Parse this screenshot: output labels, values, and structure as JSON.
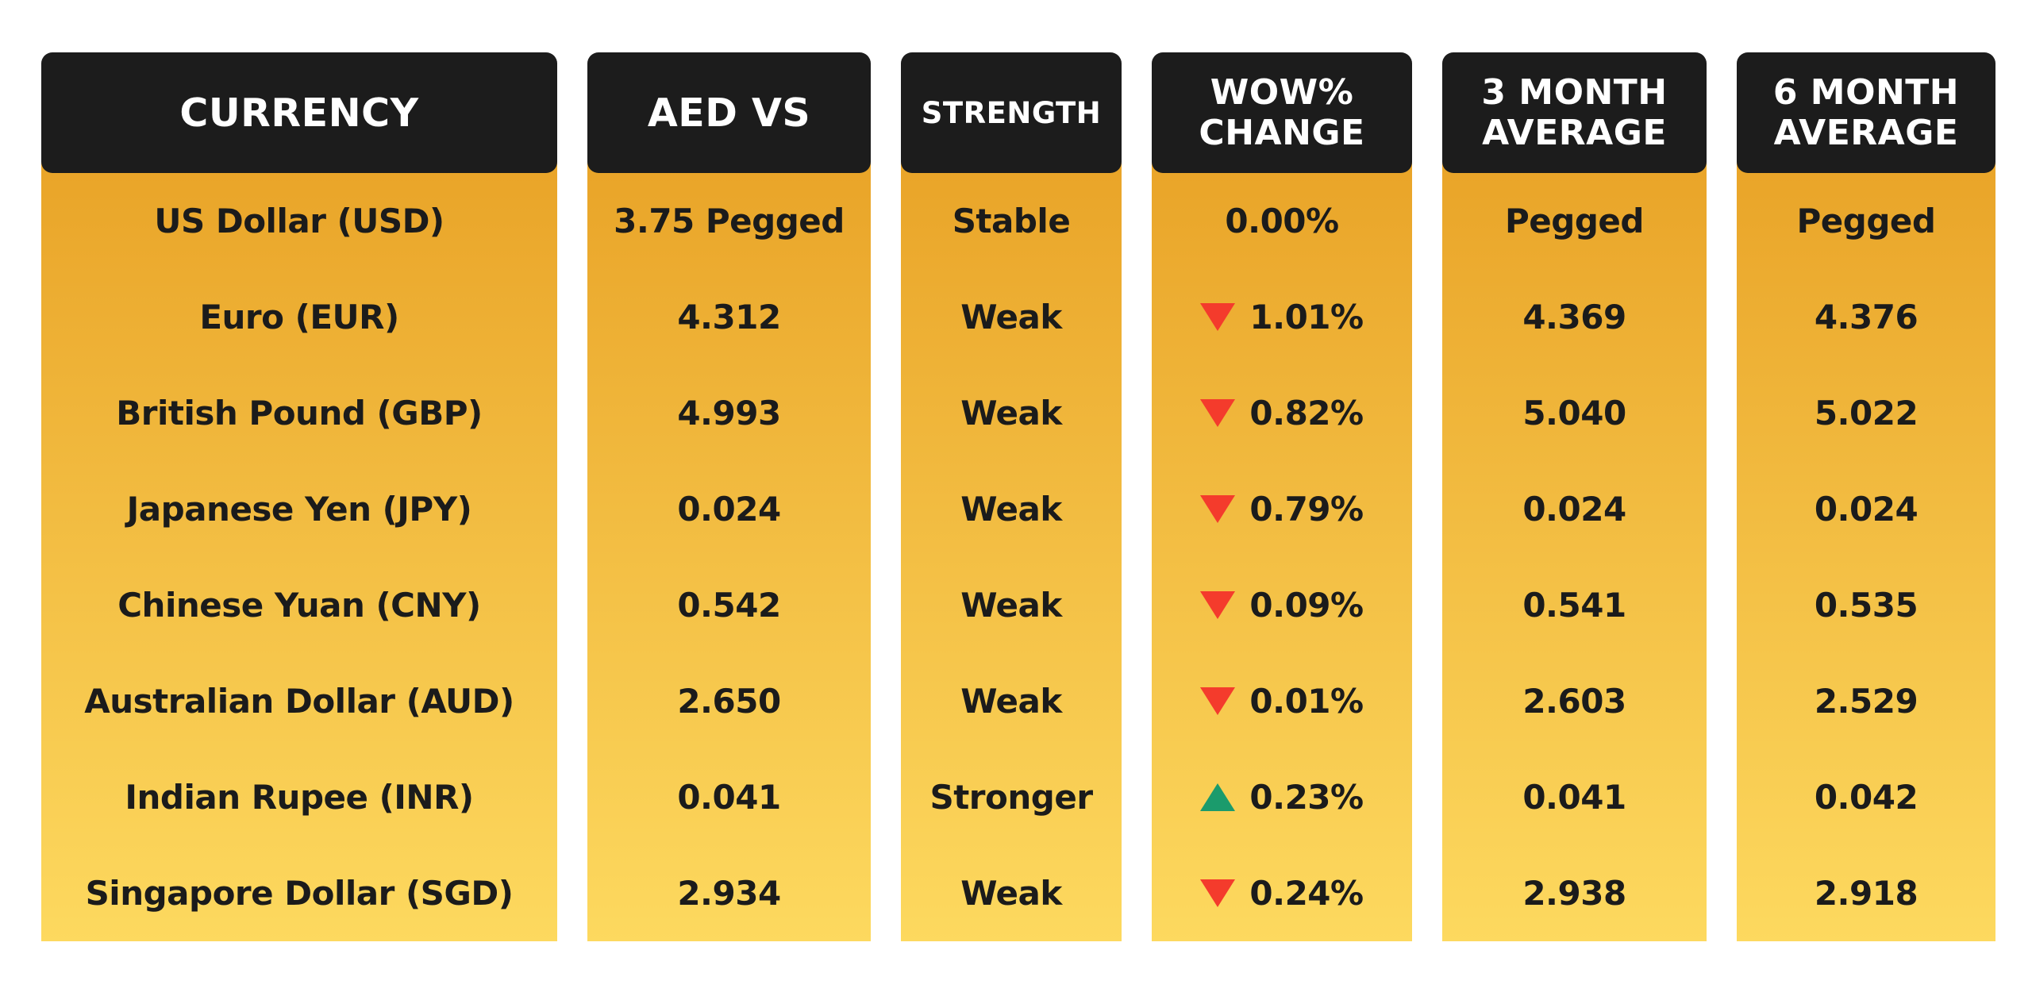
{
  "chart_data": {
    "type": "table",
    "columns": [
      {
        "id": "currency",
        "header": "CURRENCY",
        "cells": [
          {
            "text": "US Dollar (USD)"
          },
          {
            "text": "Euro (EUR)"
          },
          {
            "text": "British Pound (GBP)"
          },
          {
            "text": "Japanese Yen (JPY)"
          },
          {
            "text": "Chinese Yuan (CNY)"
          },
          {
            "text": "Australian Dollar (AUD)"
          },
          {
            "text": "Indian Rupee (INR)"
          },
          {
            "text": "Singapore Dollar (SGD)"
          }
        ]
      },
      {
        "id": "aed-vs",
        "header": "AED VS",
        "cells": [
          {
            "text": "3.75 Pegged"
          },
          {
            "text": "4.312"
          },
          {
            "text": "4.993"
          },
          {
            "text": "0.024"
          },
          {
            "text": "0.542"
          },
          {
            "text": "2.650"
          },
          {
            "text": "0.041"
          },
          {
            "text": "2.934"
          }
        ]
      },
      {
        "id": "strength",
        "header": "STRENGTH",
        "cells": [
          {
            "text": "Stable"
          },
          {
            "text": "Weak"
          },
          {
            "text": "Weak"
          },
          {
            "text": "Weak"
          },
          {
            "text": "Weak"
          },
          {
            "text": "Weak"
          },
          {
            "text": "Stronger"
          },
          {
            "text": "Weak"
          }
        ]
      },
      {
        "id": "wow-change",
        "header": "WOW% CHANGE",
        "cells": [
          {
            "text": "0.00%",
            "trend": "none"
          },
          {
            "text": "1.01%",
            "trend": "down"
          },
          {
            "text": "0.82%",
            "trend": "down"
          },
          {
            "text": "0.79%",
            "trend": "down"
          },
          {
            "text": "0.09%",
            "trend": "down"
          },
          {
            "text": "0.01%",
            "trend": "down"
          },
          {
            "text": "0.23%",
            "trend": "up"
          },
          {
            "text": "0.24%",
            "trend": "down"
          }
        ]
      },
      {
        "id": "3-month-average",
        "header": "3 MONTH AVERAGE",
        "cells": [
          {
            "text": "Pegged"
          },
          {
            "text": "4.369"
          },
          {
            "text": "5.040"
          },
          {
            "text": "0.024"
          },
          {
            "text": "0.541"
          },
          {
            "text": "2.603"
          },
          {
            "text": "0.041"
          },
          {
            "text": "2.938"
          }
        ]
      },
      {
        "id": "6-month-average",
        "header": "6 MONTH AVERAGE",
        "cells": [
          {
            "text": "Pegged"
          },
          {
            "text": "4.376"
          },
          {
            "text": "5.022"
          },
          {
            "text": "0.024"
          },
          {
            "text": "0.535"
          },
          {
            "text": "2.529"
          },
          {
            "text": "0.042"
          },
          {
            "text": "2.918"
          }
        ]
      }
    ]
  },
  "colors": {
    "header_bg": "#1C1C1C",
    "header_text": "#FFFFFF",
    "body_gradient_top": "#E9A428",
    "body_gradient_bottom": "#FDD95F",
    "cell_text": "#1B1B1B",
    "trend_up": "#1B9B6C",
    "trend_down": "#F43B2C"
  }
}
